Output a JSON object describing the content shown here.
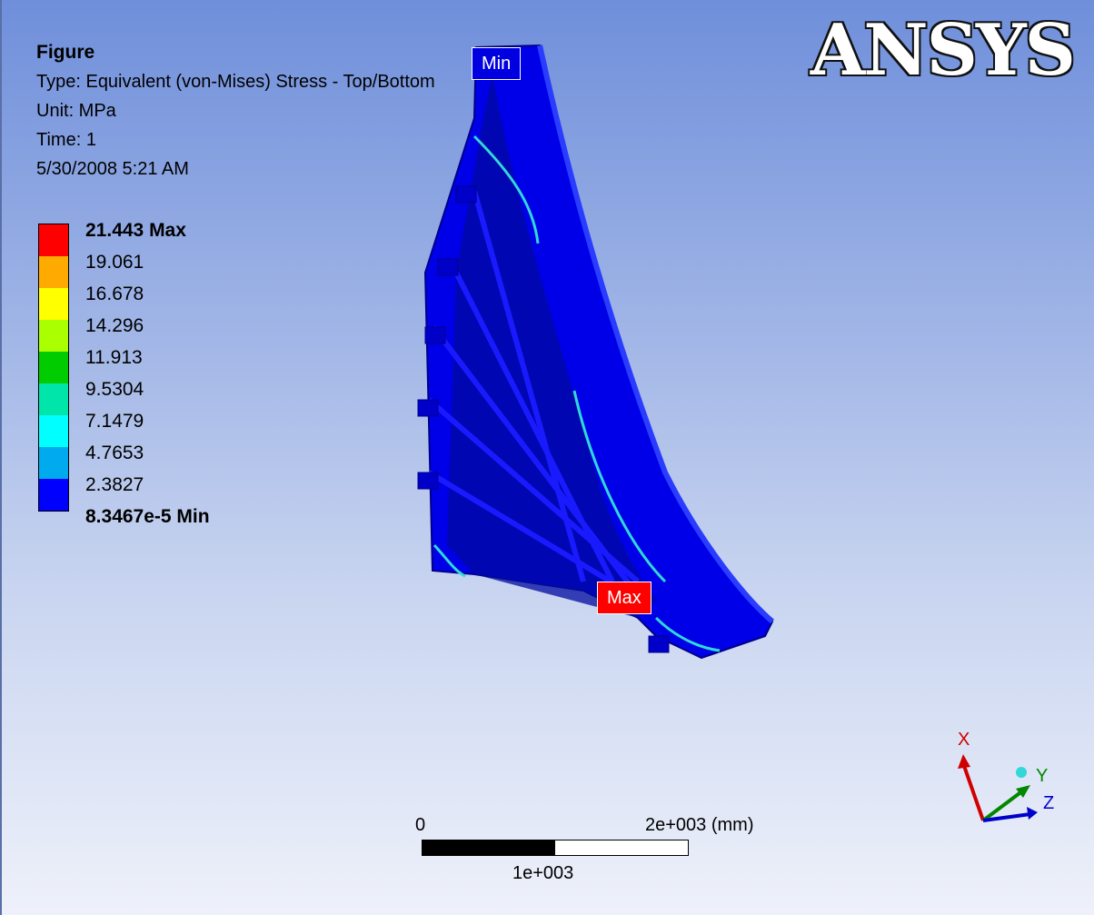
{
  "figure": {
    "title": "Figure",
    "type_line": "Type: Equivalent (von-Mises) Stress - Top/Bottom",
    "unit_line": "Unit: MPa",
    "time_line": "Time: 1",
    "date_line": "5/30/2008 5:21 AM"
  },
  "logo": "ANSYS",
  "legend": {
    "labels": [
      "21.443 Max",
      "19.061",
      "16.678",
      "14.296",
      "11.913",
      "9.5304",
      "7.1479",
      "4.7653",
      "2.3827",
      "8.3467e-5 Min"
    ],
    "colors": [
      "#ff0000",
      "#ffaa00",
      "#ffff00",
      "#aaff00",
      "#00cc00",
      "#00e6aa",
      "#00ffff",
      "#00aaee",
      "#0000ff"
    ]
  },
  "tags": {
    "min": "Min",
    "max": "Max"
  },
  "scale": {
    "zero": "0",
    "end": "2e+003 (mm)",
    "mid": "1e+003"
  },
  "axes": {
    "x": "X",
    "y": "Y",
    "z": "Z"
  }
}
